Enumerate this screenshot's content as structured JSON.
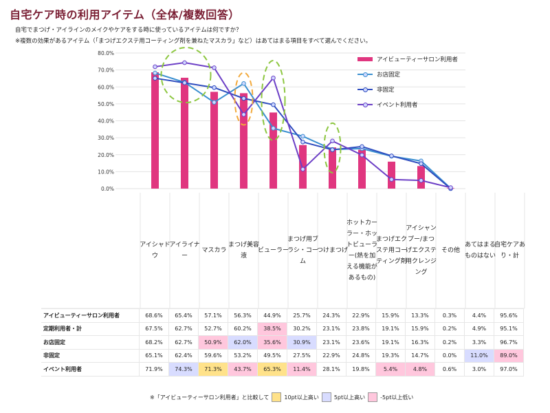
{
  "title": "自宅ケア時の利用アイテム（全体/複数回答）",
  "question": "自宅でまつげ・アイラインのメイクやケアをする時に使っているアイテムは何ですか？",
  "note_top": "※複数の効果があるアイテム（「まつげエクステ用コーティング剤を兼ねたマスカラ」など）はあてはまる項目をすべて選んでください。",
  "colors": {
    "bar": "#e0367f",
    "store_fixed": "#3a8fd0",
    "non_fixed": "#2f4dbf",
    "event": "#6c3fc6",
    "circle_green": "#8cc63f",
    "circle_orange": "#f2a93b"
  },
  "chart_data": {
    "type": "bar+line",
    "categories": [
      "アイシャドウ",
      "アイライナー",
      "マスカラ",
      "まつげ美容液",
      "ビューラー",
      "まつげ用ブラシ・コーム",
      "つけまつげ",
      "ホットカーラー・ホットビューラー（熱を加える機能があるもの）",
      "まつげエクステ用コーティング剤",
      "アイシャンプー/まつげエクステ用クレンジング",
      "その他"
    ],
    "category_labels": [
      "アイシャドウ",
      "アイライナー",
      "マスカラ",
      "まつげ美容液",
      "ビューラー",
      "まつげ用ブラシ・コーム",
      "つけまつげ",
      "ホットカーラー・ホットビューラー(熱を加える機能があるもの)",
      "まつげエクステ用コーティング剤",
      "アイシャンプー/まつげエクステ用クレンジング",
      "その他"
    ],
    "extra_columns": [
      "あてはまるものはない",
      "自宅ケアあり・計"
    ],
    "y_axis": {
      "min": 0,
      "max": 80,
      "step": 10,
      "format": "0.0%"
    },
    "series": [
      {
        "name": "アイビューティーサロン利用者",
        "type": "bar",
        "values": [
          68.6,
          65.4,
          57.1,
          56.3,
          44.9,
          25.7,
          24.3,
          22.9,
          15.9,
          13.3,
          0.3
        ]
      },
      {
        "name": "お店固定",
        "type": "line",
        "values": [
          68.2,
          62.7,
          50.9,
          62.0,
          35.6,
          30.9,
          23.1,
          23.6,
          19.1,
          16.3,
          0.2
        ]
      },
      {
        "name": "非固定",
        "type": "line",
        "values": [
          65.1,
          62.4,
          59.6,
          53.2,
          49.5,
          27.5,
          22.9,
          24.8,
          19.3,
          14.7,
          0.0
        ]
      },
      {
        "name": "イベント利用者",
        "type": "line",
        "values": [
          71.9,
          74.3,
          71.3,
          43.7,
          65.3,
          11.4,
          28.1,
          19.8,
          5.4,
          4.8,
          0.6
        ]
      }
    ],
    "legend": [
      "アイビューティーサロン利用者",
      "お店固定",
      "非固定",
      "イベント利用者"
    ],
    "legend_position": "top-right"
  },
  "table": {
    "rows": [
      {
        "label": "アイビューティーサロン利用者",
        "values": [
          "68.6%",
          "65.4%",
          "57.1%",
          "56.3%",
          "44.9%",
          "25.7%",
          "24.3%",
          "22.9%",
          "15.9%",
          "13.3%",
          "0.3%",
          "4.4%",
          "95.6%"
        ],
        "hl": [
          "",
          "",
          "",
          "",
          "",
          "",
          "",
          "",
          "",
          "",
          "",
          "",
          ""
        ]
      },
      {
        "label": "定期利用者・計",
        "values": [
          "67.5%",
          "62.7%",
          "52.7%",
          "60.2%",
          "38.5%",
          "30.2%",
          "23.1%",
          "23.8%",
          "19.1%",
          "15.9%",
          "0.2%",
          "4.9%",
          "95.1%"
        ],
        "hl": [
          "",
          "",
          "",
          "",
          "lo5",
          "",
          "",
          "",
          "",
          "",
          "",
          "",
          ""
        ]
      },
      {
        "label": "お店固定",
        "values": [
          "68.2%",
          "62.7%",
          "50.9%",
          "62.0%",
          "35.6%",
          "30.9%",
          "23.1%",
          "23.6%",
          "19.1%",
          "16.3%",
          "0.2%",
          "3.3%",
          "96.7%"
        ],
        "hl": [
          "",
          "",
          "lo5",
          "hi5",
          "lo5",
          "hi5",
          "",
          "",
          "",
          "",
          "",
          "",
          ""
        ]
      },
      {
        "label": "非固定",
        "values": [
          "65.1%",
          "62.4%",
          "59.6%",
          "53.2%",
          "49.5%",
          "27.5%",
          "22.9%",
          "24.8%",
          "19.3%",
          "14.7%",
          "0.0%",
          "11.0%",
          "89.0%"
        ],
        "hl": [
          "",
          "",
          "",
          "",
          "",
          "",
          "",
          "",
          "",
          "",
          "",
          "hi5",
          "lo5"
        ]
      },
      {
        "label": "イベント利用者",
        "values": [
          "71.9%",
          "74.3%",
          "71.3%",
          "43.7%",
          "65.3%",
          "11.4%",
          "28.1%",
          "19.8%",
          "5.4%",
          "4.8%",
          "0.6%",
          "3.0%",
          "97.0%"
        ],
        "hl": [
          "",
          "hi5",
          "hi10",
          "lo5",
          "hi10",
          "lo5",
          "",
          "",
          "lo5",
          "lo5",
          "",
          "",
          ""
        ]
      }
    ]
  },
  "footnote": {
    "prefix": "※「アイビューティーサロン利用者」と比較して",
    "hi10": "10pt以上高い",
    "hi5": "5pt以上高い",
    "lo5": "-5pt以上低い"
  }
}
